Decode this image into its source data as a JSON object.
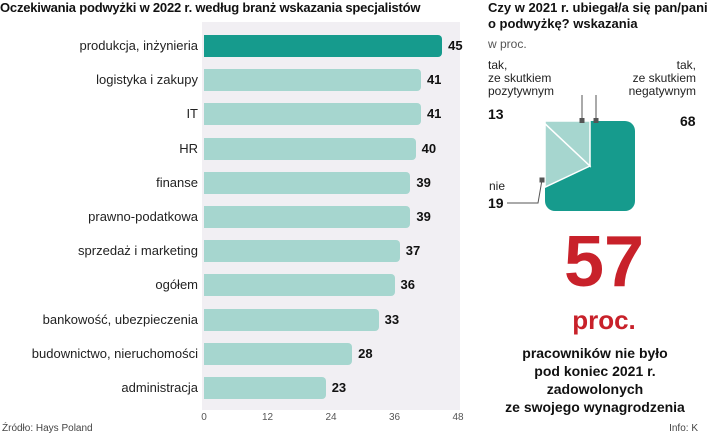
{
  "left_chart": {
    "title": "Oczekiwania podwyżki w 2022 r. według branż wskazania specjalistów",
    "source": "Źródło: Hays Poland",
    "credit": "Info: K"
  },
  "right_chart": {
    "title": "Czy w 2021 r. ubiegał/a się pan/pani o podwyżkę? wskazania",
    "unit": "w proc.",
    "labels": {
      "positive": [
        "tak,",
        "ze skutkiem",
        "pozytywnym"
      ],
      "negative": [
        "tak,",
        "ze skutkiem",
        "negatywnym"
      ],
      "no": "nie"
    },
    "values": {
      "positive": "13",
      "negative": "68",
      "no": "19"
    }
  },
  "highlight": {
    "number": "57",
    "unit": "proc.",
    "caption": [
      "pracowników  nie było",
      "pod koniec 2021 r.",
      "zadowolonych",
      "ze swojego wynagrodzenia"
    ]
  },
  "colors": {
    "accent": "#169b8d",
    "bar": "#a6d6cf",
    "panel": "#f1eff3",
    "red": "#c8212a"
  },
  "chart_data": [
    {
      "type": "bar",
      "orientation": "horizontal",
      "title": "Oczekiwania podwyżki w 2022 r. według branż wskazania specjalistów",
      "categories": [
        "produkcja, inżynieria",
        "logistyka i zakupy",
        "IT",
        "HR",
        "finanse",
        "prawno-podatkowa",
        "sprzedaż i marketing",
        "ogółem",
        "bankowość, ubezpieczenia",
        "budownictwo, nieruchomości",
        "administracja"
      ],
      "values": [
        45,
        41,
        41,
        40,
        39,
        39,
        37,
        36,
        33,
        28,
        23
      ],
      "value_labels": [
        "45",
        "41",
        "41",
        "40",
        "39",
        "39",
        "37",
        "36",
        "33",
        "28",
        "23"
      ],
      "highlighted_index": 0,
      "xlim": [
        0,
        48
      ],
      "xticks": [
        0,
        12,
        24,
        36,
        48
      ],
      "xtick_labels": [
        "0",
        "12",
        "24",
        "36",
        "48"
      ]
    },
    {
      "type": "pie",
      "title": "Czy w 2021 r. ubiegał/a się pan/pani o podwyżkę? wskazania",
      "unit": "w proc.",
      "slices": [
        {
          "name": "tak, ze skutkiem pozytywnym",
          "value": 13
        },
        {
          "name": "tak, ze skutkiem negatywnym",
          "value": 68
        },
        {
          "name": "nie",
          "value": 19
        }
      ]
    }
  ]
}
